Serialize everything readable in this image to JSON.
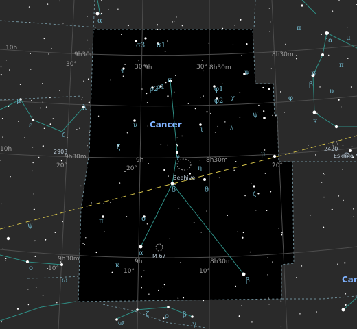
{
  "map": {
    "constellation_name": "Cancer",
    "neighbor_name": "Can",
    "ra_labels": [
      "9h30m",
      "9h",
      "8h30m",
      "9h30m",
      "9h",
      "8h30m",
      "9h30m",
      "9h",
      "8h30m",
      "10h"
    ],
    "dec_labels": [
      "30°",
      "30°",
      "30°",
      "20°",
      "20°",
      "20°",
      "10°",
      "10°",
      "10°",
      "10h",
      "9h30m",
      "9h",
      "8h30m"
    ],
    "greek_letters": [
      "α",
      "σ3",
      "σ1",
      "τ",
      "ρ2",
      "ρ1",
      "κ",
      "φ1",
      "φ2",
      "χ",
      "ψ",
      "ν",
      "ξ",
      "ι",
      "γ",
      "η",
      "δ",
      "θ",
      "λ",
      "ζ",
      "μ",
      "ψ",
      "π",
      "ο",
      "α",
      "β",
      "ω",
      "κ",
      "α",
      "β",
      "ε",
      "μ",
      "λ",
      "ζ",
      "ο",
      "ψ",
      "π",
      "σ",
      "β",
      "υ",
      "φ",
      "κ",
      "α",
      "π",
      "μ",
      "ω",
      "ζ",
      "ρ",
      "β",
      "γ",
      "ο",
      "κ",
      "ψ",
      "σ",
      "μ",
      "α"
    ],
    "object_labels": [
      "Beehive",
      "M 67",
      "2903",
      "2420",
      "Eskimo N"
    ],
    "colors": {
      "background": "#2a2a2a",
      "constellation_area": "#000000",
      "boundary": "#6f8f9a",
      "ecliptic": "#d4c24a",
      "stick_figure": "#2f8f86",
      "greek": "#6fb3c6",
      "constellation_label": "#7fb2ff"
    }
  }
}
